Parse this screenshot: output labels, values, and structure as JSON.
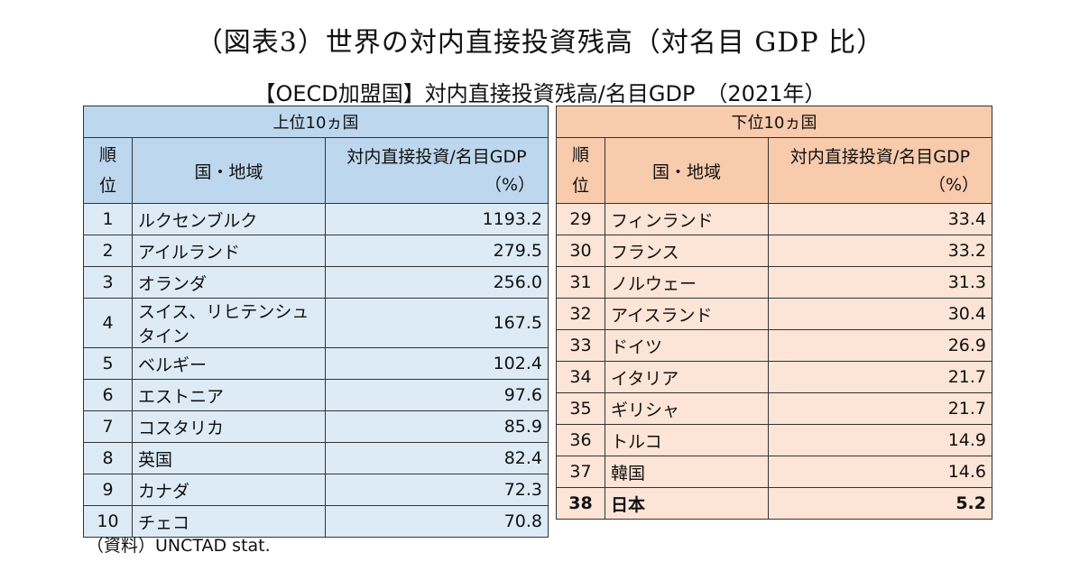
{
  "title": "（図表3）世界の対内直接投資残高（対名目 GDP 比）",
  "subtitle": "【OECD加盟国】対内直接投資残高/名目GDP　（2021年）",
  "left": {
    "group_title": "上位10ヵ国",
    "header": {
      "rank_line1": "順",
      "rank_line2": "位",
      "name": "国・地域",
      "value_line1": "対内直接投資/名目GDP",
      "value_line2": "（%）"
    },
    "rows": [
      {
        "rank": "1",
        "name": "ルクセンブルク",
        "value": "1193.2"
      },
      {
        "rank": "2",
        "name": "アイルランド",
        "value": "279.5"
      },
      {
        "rank": "3",
        "name": "オランダ",
        "value": "256.0"
      },
      {
        "rank": "4",
        "name": "スイス、リヒテンシュタイン",
        "value": "167.5"
      },
      {
        "rank": "5",
        "name": "ベルギー",
        "value": "102.4"
      },
      {
        "rank": "6",
        "name": "エストニア",
        "value": "97.6"
      },
      {
        "rank": "7",
        "name": "コスタリカ",
        "value": "85.9"
      },
      {
        "rank": "8",
        "name": "英国",
        "value": "82.4"
      },
      {
        "rank": "9",
        "name": "カナダ",
        "value": "72.3"
      },
      {
        "rank": "10",
        "name": "チェコ",
        "value": "70.8"
      }
    ]
  },
  "right": {
    "group_title": "下位10ヵ国",
    "header": {
      "rank_line1": "順",
      "rank_line2": "位",
      "name": "国・地域",
      "value_line1": "対内直接投資/名目GDP",
      "value_line2": "（%）"
    },
    "rows": [
      {
        "rank": "29",
        "name": "フィンランド",
        "value": "33.4"
      },
      {
        "rank": "30",
        "name": "フランス",
        "value": "33.2"
      },
      {
        "rank": "31",
        "name": "ノルウェー",
        "value": "31.3"
      },
      {
        "rank": "32",
        "name": "アイスランド",
        "value": "30.4"
      },
      {
        "rank": "33",
        "name": "ドイツ",
        "value": "26.9"
      },
      {
        "rank": "34",
        "name": "イタリア",
        "value": "21.7"
      },
      {
        "rank": "35",
        "name": "ギリシャ",
        "value": "21.7"
      },
      {
        "rank": "36",
        "name": "トルコ",
        "value": "14.9"
      },
      {
        "rank": "37",
        "name": "韓国",
        "value": "14.6"
      },
      {
        "rank": "38",
        "name": "日本",
        "value": "5.2"
      }
    ]
  },
  "source": "（資料）UNCTAD stat.",
  "colors": {
    "left_header": "#bdd7ee",
    "left_cells": "#ddebf7",
    "right_header": "#f8cbad",
    "right_cells": "#fce4d6"
  }
}
